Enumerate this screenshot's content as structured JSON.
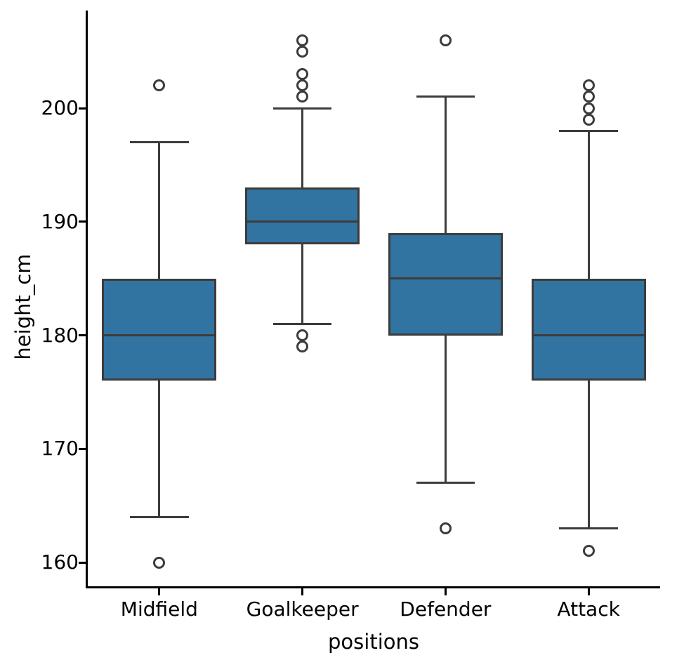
{
  "chart_data": {
    "type": "boxplot",
    "title": "",
    "xlabel": "positions",
    "ylabel": "height_cm",
    "categories": [
      "Midfield",
      "Goalkeeper",
      "Defender",
      "Attack"
    ],
    "yticks": [
      160,
      170,
      180,
      190,
      200
    ],
    "ylim": [
      157.9,
      208.6
    ],
    "grid": false,
    "legend": false,
    "colors": {
      "box_fill": "#3274A1",
      "box_line": "#3C3C3C",
      "axis": "#000000"
    },
    "boxes": [
      {
        "category": "Midfield",
        "whisker_low": 164,
        "q1": 176,
        "median": 180,
        "q3": 185,
        "whisker_high": 197,
        "outliers": [
          202,
          160
        ]
      },
      {
        "category": "Goalkeeper",
        "whisker_low": 181,
        "q1": 188,
        "median": 190,
        "q3": 193,
        "whisker_high": 200,
        "outliers": [
          206,
          205,
          203,
          202,
          201,
          180,
          179
        ]
      },
      {
        "category": "Defender",
        "whisker_low": 167,
        "q1": 180,
        "median": 185,
        "q3": 189,
        "whisker_high": 201,
        "outliers": [
          206,
          163
        ]
      },
      {
        "category": "Attack",
        "whisker_low": 163,
        "q1": 176,
        "median": 180,
        "q3": 185,
        "whisker_high": 198,
        "outliers": [
          202,
          201,
          200,
          199,
          161
        ]
      }
    ]
  }
}
